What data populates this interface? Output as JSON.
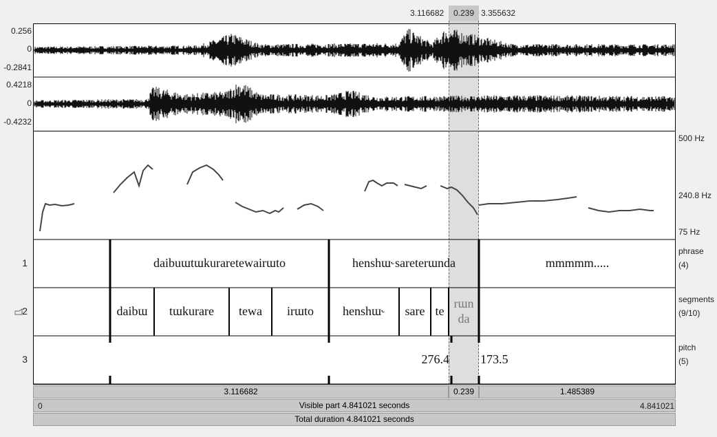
{
  "time_bar": {
    "selection_start": "3.116682",
    "selection_length": "0.239",
    "selection_end": "3.355632"
  },
  "channels": [
    {
      "max": "0.256",
      "zero": "0",
      "min": "-0.2841"
    },
    {
      "max": "0.4218",
      "zero": "0",
      "min": "-0.4232"
    }
  ],
  "pitch": {
    "max": "500 Hz",
    "mid": "240.8 Hz",
    "min": "75 Hz"
  },
  "tiers": [
    {
      "number": "1",
      "name": "phrase",
      "count": "(4)",
      "intervals": [
        "daibuɯtɯkuraretewairɯto",
        "henshɯ˞sareterɯnda",
        "mmmmm....."
      ]
    },
    {
      "number": "2",
      "name": "segments",
      "count": "(9/10)",
      "intervals": [
        "daibɯ",
        "tɯkurare",
        "tewa",
        "irɯto",
        "henshɯ˞",
        "sare",
        "te",
        "rɯn da"
      ]
    },
    {
      "number": "3",
      "name": "pitch",
      "count": "(5)",
      "points": [
        "276.4",
        "173.5"
      ]
    }
  ],
  "duration_bars": {
    "before": "3.116682",
    "selection": "0.239",
    "after": "1.485389"
  },
  "visible": {
    "start": "0",
    "label": "Visible part 4.841021 seconds",
    "end": "4.841021"
  },
  "total": "Total duration 4.841021 seconds"
}
